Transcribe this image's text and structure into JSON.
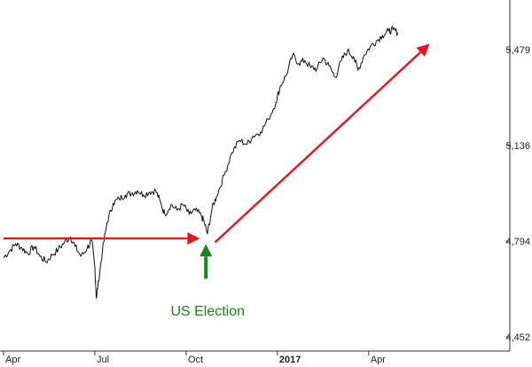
{
  "chart_data": {
    "type": "line",
    "title": "",
    "xlabel": "",
    "ylabel": "",
    "y_axis_side": "right",
    "grid": false,
    "ylim": [
      4452,
      5600
    ],
    "x_ticks": [
      {
        "label": "Apr",
        "month_index": 0,
        "bold": false
      },
      {
        "label": "Jul",
        "month_index": 3,
        "bold": false
      },
      {
        "label": "Oct",
        "month_index": 6,
        "bold": false
      },
      {
        "label": "2017",
        "month_index": 9,
        "bold": true
      },
      {
        "label": "Apr",
        "month_index": 12,
        "bold": false
      }
    ],
    "y_ticks": [
      {
        "label": "5,479",
        "value": 5479
      },
      {
        "label": "5,136",
        "value": 5136
      },
      {
        "label": "4,794",
        "value": 4794
      },
      {
        "label": "4,452",
        "value": 4452
      }
    ],
    "xlim_months": [
      0,
      16.2
    ],
    "series": [
      {
        "color": "#111111",
        "points": [
          [
            0.0,
            4735
          ],
          [
            0.2,
            4760
          ],
          [
            0.4,
            4785
          ],
          [
            0.6,
            4770
          ],
          [
            0.8,
            4750
          ],
          [
            1.0,
            4775
          ],
          [
            1.2,
            4740
          ],
          [
            1.4,
            4720
          ],
          [
            1.6,
            4745
          ],
          [
            1.8,
            4765
          ],
          [
            2.0,
            4790
          ],
          [
            2.2,
            4810
          ],
          [
            2.35,
            4775
          ],
          [
            2.55,
            4740
          ],
          [
            2.75,
            4770
          ],
          [
            2.9,
            4795
          ],
          [
            3.0,
            4700
          ],
          [
            3.05,
            4590
          ],
          [
            3.12,
            4650
          ],
          [
            3.25,
            4760
          ],
          [
            3.4,
            4860
          ],
          [
            3.6,
            4930
          ],
          [
            3.8,
            4945
          ],
          [
            4.0,
            4960
          ],
          [
            4.2,
            4965
          ],
          [
            4.4,
            4975
          ],
          [
            4.6,
            4960
          ],
          [
            4.8,
            4970
          ],
          [
            5.0,
            4975
          ],
          [
            5.15,
            4935
          ],
          [
            5.3,
            4890
          ],
          [
            5.5,
            4925
          ],
          [
            5.7,
            4905
          ],
          [
            5.9,
            4925
          ],
          [
            6.1,
            4890
          ],
          [
            6.3,
            4905
          ],
          [
            6.5,
            4885
          ],
          [
            6.6,
            4860
          ],
          [
            6.7,
            4820
          ],
          [
            6.85,
            4910
          ],
          [
            7.0,
            4955
          ],
          [
            7.25,
            5030
          ],
          [
            7.5,
            5110
          ],
          [
            7.75,
            5155
          ],
          [
            8.0,
            5140
          ],
          [
            8.2,
            5170
          ],
          [
            8.45,
            5185
          ],
          [
            8.7,
            5230
          ],
          [
            8.95,
            5290
          ],
          [
            9.1,
            5350
          ],
          [
            9.3,
            5390
          ],
          [
            9.5,
            5460
          ],
          [
            9.7,
            5430
          ],
          [
            9.9,
            5440
          ],
          [
            10.1,
            5415
          ],
          [
            10.3,
            5410
          ],
          [
            10.5,
            5450
          ],
          [
            10.7,
            5420
          ],
          [
            10.9,
            5380
          ],
          [
            11.1,
            5440
          ],
          [
            11.3,
            5475
          ],
          [
            11.5,
            5455
          ],
          [
            11.65,
            5405
          ],
          [
            11.85,
            5460
          ],
          [
            12.05,
            5490
          ],
          [
            12.25,
            5510
          ],
          [
            12.45,
            5530
          ],
          [
            12.65,
            5545
          ],
          [
            12.8,
            5550
          ],
          [
            12.95,
            5540
          ]
        ]
      }
    ],
    "annotations": [
      {
        "text": "US Election",
        "color": "#178817",
        "at_month": 6.65
      }
    ],
    "arrows": [
      {
        "color": "#e8141b",
        "from": [
          0.0,
          4804
        ],
        "to": [
          6.45,
          4804
        ]
      },
      {
        "color": "#e8141b",
        "from": [
          6.95,
          4790
        ],
        "to": [
          14.0,
          5500
        ]
      },
      {
        "color": "#178817",
        "from": [
          6.65,
          4660
        ],
        "to": [
          6.65,
          4784
        ]
      }
    ]
  }
}
